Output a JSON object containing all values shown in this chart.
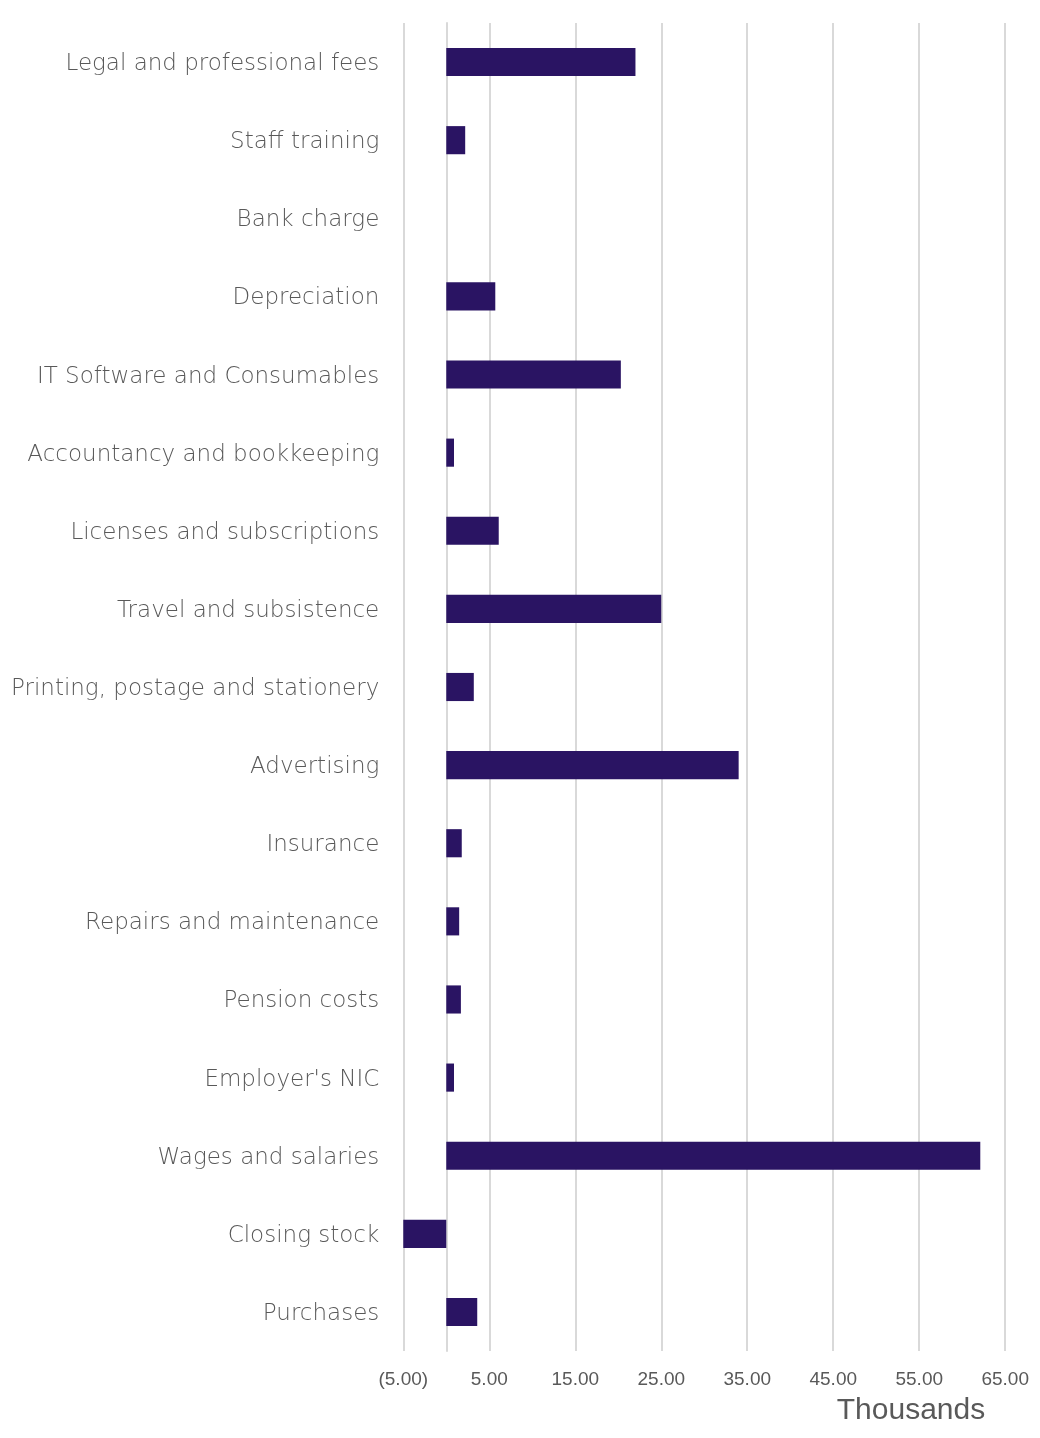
{
  "chart_data": {
    "type": "bar",
    "orientation": "horizontal",
    "xlabel": "Thousands",
    "categories": [
      "Legal and professional fees",
      "Staff training",
      "Bank charge",
      "Depreciation",
      "IT Software and Consumables",
      "Accountancy and bookkeeping",
      "Licenses and subscriptions",
      "Travel and subsistence",
      "Printing, postage and stationery",
      "Advertising",
      "Insurance",
      "Repairs and maintenance",
      "Pension costs",
      "Employer's NIC",
      "Wages and salaries",
      "Closing stock",
      "Purchases"
    ],
    "values": [
      22.0,
      2.2,
      0,
      5.7,
      20.3,
      0.9,
      6.1,
      25.0,
      3.2,
      34.0,
      1.8,
      1.5,
      1.7,
      0.9,
      62.1,
      -5.0,
      3.6
    ],
    "color": "#2a1463",
    "xlim": [
      -5,
      65
    ],
    "xticks": [
      {
        "value": -5,
        "label": "(5.00)"
      },
      {
        "value": 5,
        "label": "5.00"
      },
      {
        "value": 15,
        "label": "15.00"
      },
      {
        "value": 25,
        "label": "25.00"
      },
      {
        "value": 35,
        "label": "35.00"
      },
      {
        "value": 45,
        "label": "45.00"
      },
      {
        "value": 55,
        "label": "55.00"
      },
      {
        "value": 65,
        "label": "65.00"
      }
    ],
    "grid": "x"
  }
}
